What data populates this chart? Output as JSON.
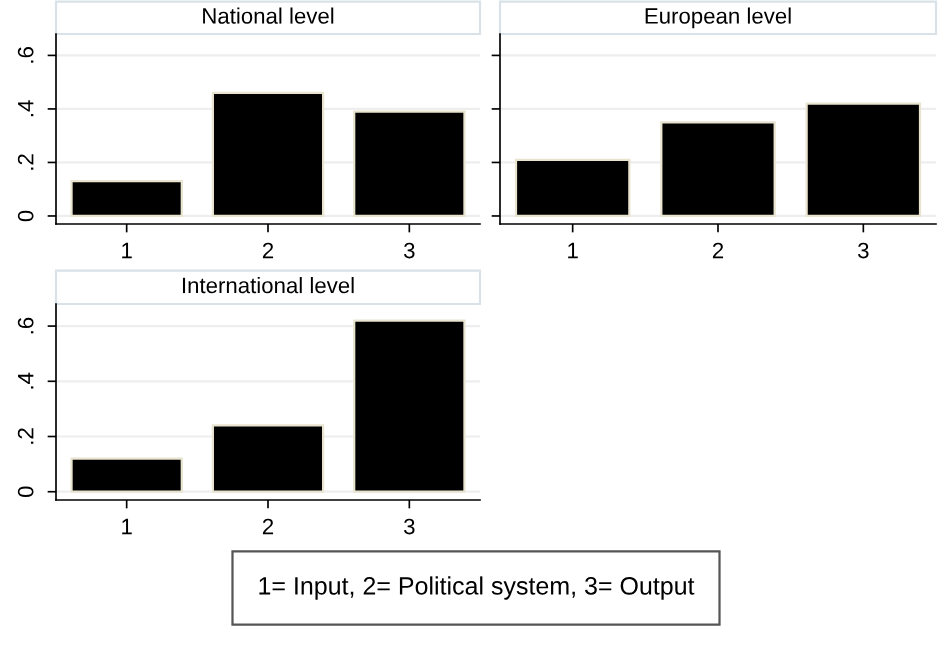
{
  "chart_data": [
    {
      "type": "bar",
      "title": "National level",
      "categories": [
        "1",
        "2",
        "3"
      ],
      "values": [
        0.13,
        0.46,
        0.39
      ],
      "color": "#000000",
      "ylim": [
        -0.03,
        0.68
      ],
      "yticks": [
        {
          "value": 0,
          "label": "0"
        },
        {
          "value": 0.2,
          "label": ".2"
        },
        {
          "value": 0.4,
          "label": ".4"
        },
        {
          "value": 0.6,
          "label": ".6"
        }
      ],
      "grid": "y"
    },
    {
      "type": "bar",
      "title": "European level",
      "categories": [
        "1",
        "2",
        "3"
      ],
      "values": [
        0.21,
        0.35,
        0.42
      ],
      "color": "#000000",
      "ylim": [
        -0.03,
        0.68
      ],
      "yticks": [
        {
          "value": 0,
          "label": null
        },
        {
          "value": 0.2,
          "label": null
        },
        {
          "value": 0.4,
          "label": null
        },
        {
          "value": 0.6,
          "label": null
        }
      ],
      "grid": "y",
      "tick_labels": "x"
    },
    {
      "type": "bar",
      "title": "International level",
      "categories": [
        "1",
        "2",
        "3"
      ],
      "values": [
        0.12,
        0.24,
        0.62
      ],
      "color": "#000000",
      "ylim": [
        -0.03,
        0.68
      ],
      "yticks": [
        {
          "value": 0,
          "label": "0"
        },
        {
          "value": 0.2,
          "label": ".2"
        },
        {
          "value": 0.4,
          "label": ".4"
        },
        {
          "value": 0.6,
          "label": ".6"
        }
      ],
      "grid": "y",
      "annotations": [
        "1= Input, 2= Political system, 3= Output"
      ]
    }
  ]
}
